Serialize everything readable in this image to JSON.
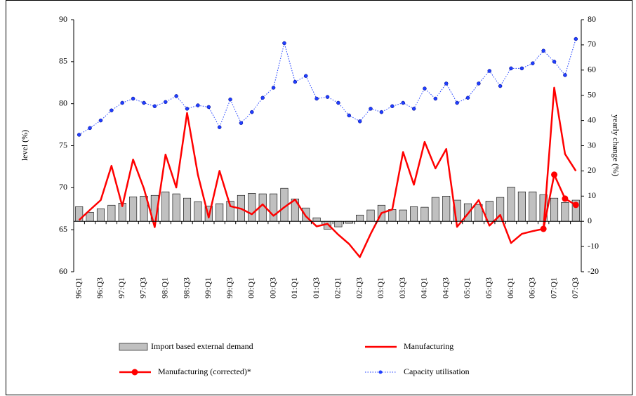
{
  "chart_data": {
    "type": "combo",
    "categories": [
      "96:Q1",
      null,
      "96:Q3",
      null,
      "97:Q1",
      null,
      "97:Q3",
      null,
      "98:Q1",
      null,
      "98:Q3",
      null,
      "99:Q1",
      null,
      "99:Q3",
      null,
      "00:Q1",
      null,
      "00:Q3",
      null,
      "01:Q1",
      null,
      "01:Q3",
      null,
      "02:Q1",
      null,
      "02:Q3",
      null,
      "03:Q1",
      null,
      "03:Q3",
      null,
      "04:Q1",
      null,
      "04:Q3",
      null,
      "05:Q1",
      null,
      "05:Q3",
      null,
      "06:Q1",
      null,
      "06:Q3",
      null,
      "07:Q1",
      null,
      "07:Q3"
    ],
    "ylabel": "level (%)",
    "y2label": "yearly change (%)",
    "ylim": [
      60,
      90
    ],
    "yticks": [
      60,
      65,
      70,
      75,
      80,
      85,
      90
    ],
    "y2lim": [
      -20,
      80
    ],
    "y2ticks": [
      -20,
      -10,
      0,
      10,
      20,
      30,
      40,
      50,
      60,
      70,
      80
    ],
    "legend": "bottom",
    "series": [
      {
        "name": "Import based external demand",
        "type": "bar",
        "axis": "y2",
        "color": "#c0c0c0",
        "values": [
          5.8,
          3.6,
          5,
          6.4,
          7.2,
          9.7,
          10,
          10.3,
          11.7,
          10.9,
          9.2,
          7.8,
          6.1,
          7,
          8,
          10.3,
          11.1,
          10.9,
          10.9,
          13.1,
          8.9,
          5.3,
          1.4,
          -3.1,
          -2.2,
          -0.8,
          2.5,
          4.5,
          6.4,
          4.7,
          4.5,
          5.8,
          5.6,
          9.5,
          10,
          8.4,
          7,
          6.7,
          8,
          9.5,
          13.6,
          11.7,
          11.7,
          10.6,
          9.2,
          7.5,
          8.4
        ]
      },
      {
        "name": "Manufacturing",
        "type": "line",
        "axis": "y2",
        "color": "#ff0000",
        "values": [
          0.5,
          4.5,
          8.4,
          22,
          6,
          24.5,
          13,
          -2.3,
          26.5,
          13.4,
          43,
          18.5,
          1.5,
          20,
          6,
          5,
          2.8,
          6.7,
          2.2,
          5.6,
          8.6,
          2,
          -2,
          -1,
          -5.3,
          -9,
          -14.2,
          -5,
          3.3,
          4.7,
          27.5,
          14.5,
          31.5,
          21,
          28.7,
          -2.2,
          3,
          8.4,
          -1.7,
          2.5,
          -8.6,
          -5,
          -3.9,
          -3,
          53,
          26.7,
          20
        ]
      },
      {
        "name": "Manufacturing (corrected)*",
        "type": "marker-line",
        "axis": "y2",
        "color": "#ff0000",
        "values": [
          null,
          null,
          null,
          null,
          null,
          null,
          null,
          null,
          null,
          null,
          null,
          null,
          null,
          null,
          null,
          null,
          null,
          null,
          null,
          null,
          null,
          null,
          null,
          null,
          null,
          null,
          null,
          null,
          null,
          null,
          null,
          null,
          null,
          null,
          null,
          null,
          null,
          null,
          null,
          null,
          null,
          null,
          null,
          -3,
          18.5,
          9,
          6.5
        ]
      },
      {
        "name": "Capacity utilisation",
        "type": "dotted-line",
        "axis": "y",
        "color": "#1f3fff",
        "values": [
          76.3,
          77.1,
          78,
          79.2,
          80.1,
          80.6,
          80.1,
          79.7,
          80.2,
          80.9,
          79.4,
          79.8,
          79.6,
          77.2,
          80.5,
          77.7,
          79,
          80.7,
          81.9,
          87.2,
          82.6,
          83.3,
          80.6,
          80.8,
          80.1,
          78.6,
          77.9,
          79.4,
          79,
          79.7,
          80.1,
          79.4,
          81.8,
          80.6,
          82.4,
          80.1,
          80.7,
          82.4,
          83.9,
          82.1,
          84.2,
          84.2,
          84.8,
          86.3,
          85,
          83.4,
          87.7
        ]
      }
    ]
  }
}
